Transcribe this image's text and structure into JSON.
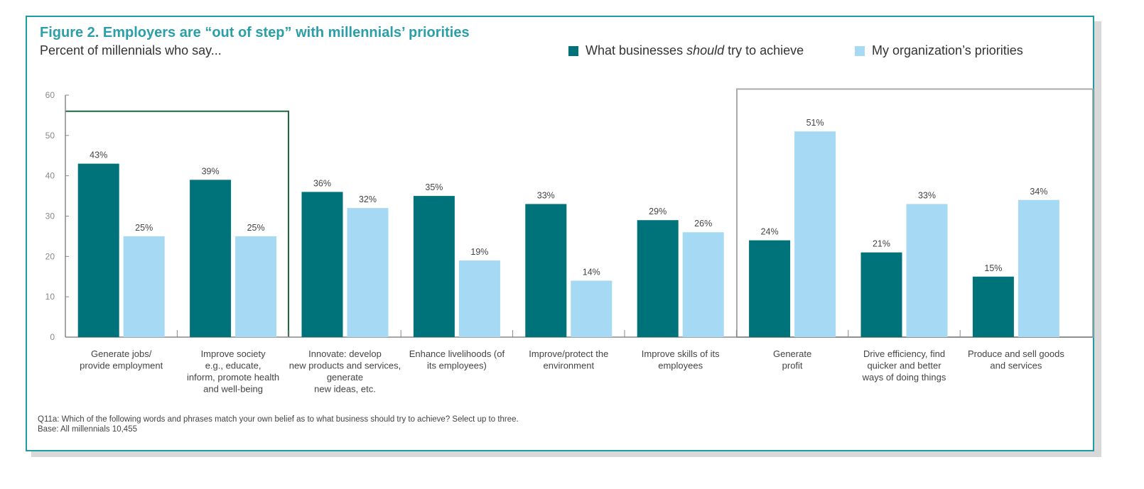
{
  "title": "Figure 2. Employers are “out of step” with millennials’ priorities",
  "subtitle": "Percent of millennials who say...",
  "footnote": "Q11a: Which of the following words and phrases match your own belief as to what business should try to achieve? Select up to three.",
  "base": "Base: All millennials 10,455",
  "colors": {
    "should": "#00737a",
    "org": "#a6d9f3",
    "frame": "#1f9ba3",
    "title": "#2a9fa8",
    "green_box": "#1e6b3a",
    "grey_box": "#aaaaaa"
  },
  "chart_data": {
    "type": "bar",
    "title": "Figure 2. Employers are “out of step” with millennials’ priorities",
    "ylabel": "Percent of millennials who say...",
    "ylim": [
      0,
      60
    ],
    "yticks": [
      "0",
      "10",
      "20",
      "30",
      "40",
      "50",
      "60"
    ],
    "legend_position": "top-right",
    "categories": [
      [
        "Generate jobs/",
        "provide employment"
      ],
      [
        "Improve society",
        "e.g., educate,",
        "inform, promote health",
        "and well-being"
      ],
      [
        "Innovate: develop",
        "new products and services,",
        "generate",
        "new ideas, etc."
      ],
      [
        "Enhance livelihoods (of",
        "its employees)"
      ],
      [
        "Improve/protect the",
        "environment"
      ],
      [
        "Improve skills of its",
        "employees"
      ],
      [
        "Generate",
        "profit"
      ],
      [
        "Drive efficiency, find",
        "quicker and better",
        "ways of doing things"
      ],
      [
        "Produce and sell goods",
        "and services"
      ]
    ],
    "series": [
      {
        "name": "What businesses should try to achieve",
        "name_parts": [
          "What businesses ",
          "should",
          " try to achieve"
        ],
        "values": [
          43,
          39,
          36,
          35,
          33,
          29,
          24,
          21,
          15
        ],
        "labels": [
          "43%",
          "39%",
          "36%",
          "35%",
          "33%",
          "29%",
          "24%",
          "21%",
          "15%"
        ]
      },
      {
        "name": "My organization’s priorities",
        "values": [
          25,
          25,
          32,
          19,
          14,
          26,
          51,
          33,
          34
        ],
        "labels": [
          "25%",
          "25%",
          "32%",
          "19%",
          "14%",
          "26%",
          "51%",
          "33%",
          "34%"
        ]
      }
    ],
    "highlight_boxes": [
      {
        "categories": [
          0,
          1
        ],
        "color": "green"
      },
      {
        "categories": [
          6,
          7,
          8
        ],
        "color": "grey"
      }
    ]
  }
}
